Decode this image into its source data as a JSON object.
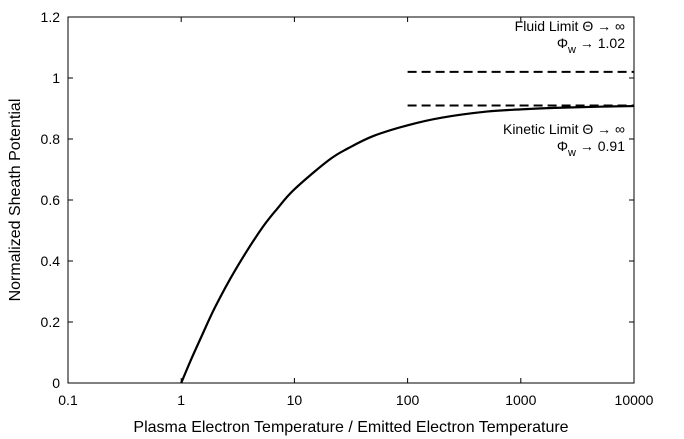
{
  "chart_data": {
    "type": "line",
    "title": "",
    "xlabel": "Plasma Electron Temperature / Emitted Electron Temperature",
    "ylabel": "Normalized Sheath Potential",
    "xscale": "log",
    "xlim": [
      0.1,
      10000
    ],
    "ylim": [
      0,
      1.2
    ],
    "x_ticks": [
      0.1,
      1,
      10,
      100,
      1000,
      10000
    ],
    "x_tick_labels": [
      "0.1",
      "1",
      "10",
      "100",
      "1000",
      "10000"
    ],
    "y_ticks": [
      0,
      0.2,
      0.4,
      0.6,
      0.8,
      1,
      1.2
    ],
    "y_tick_labels": [
      "0",
      "0.2",
      "0.4",
      "0.6",
      "0.8",
      "1",
      "1.2"
    ],
    "grid": false,
    "series": [
      {
        "style": "solid",
        "color": "#000000",
        "x": [
          1,
          1.2,
          1.5,
          2,
          3,
          5,
          7,
          10,
          20,
          30,
          50,
          100,
          200,
          500,
          1000,
          2000,
          5000,
          10000
        ],
        "y": [
          0,
          0.07,
          0.15,
          0.25,
          0.37,
          0.5,
          0.57,
          0.635,
          0.73,
          0.77,
          0.81,
          0.845,
          0.87,
          0.89,
          0.897,
          0.902,
          0.906,
          0.908
        ]
      }
    ],
    "reference_lines": [
      {
        "style": "dashed",
        "y": 1.02,
        "x_start": 100,
        "x_end": 10000
      },
      {
        "style": "dashed",
        "y": 0.91,
        "x_start": 100,
        "x_end": 10000
      }
    ],
    "annotations": [
      {
        "line1": "Fluid Limit Θ → ∞",
        "line2_main": "Φ",
        "line2_sub": "w",
        "line2_rest": " → 1.02"
      },
      {
        "line1": "Kinetic Limit Θ → ∞",
        "line2_main": "Φ",
        "line2_sub": "w",
        "line2_rest": " → 0.91"
      }
    ]
  }
}
